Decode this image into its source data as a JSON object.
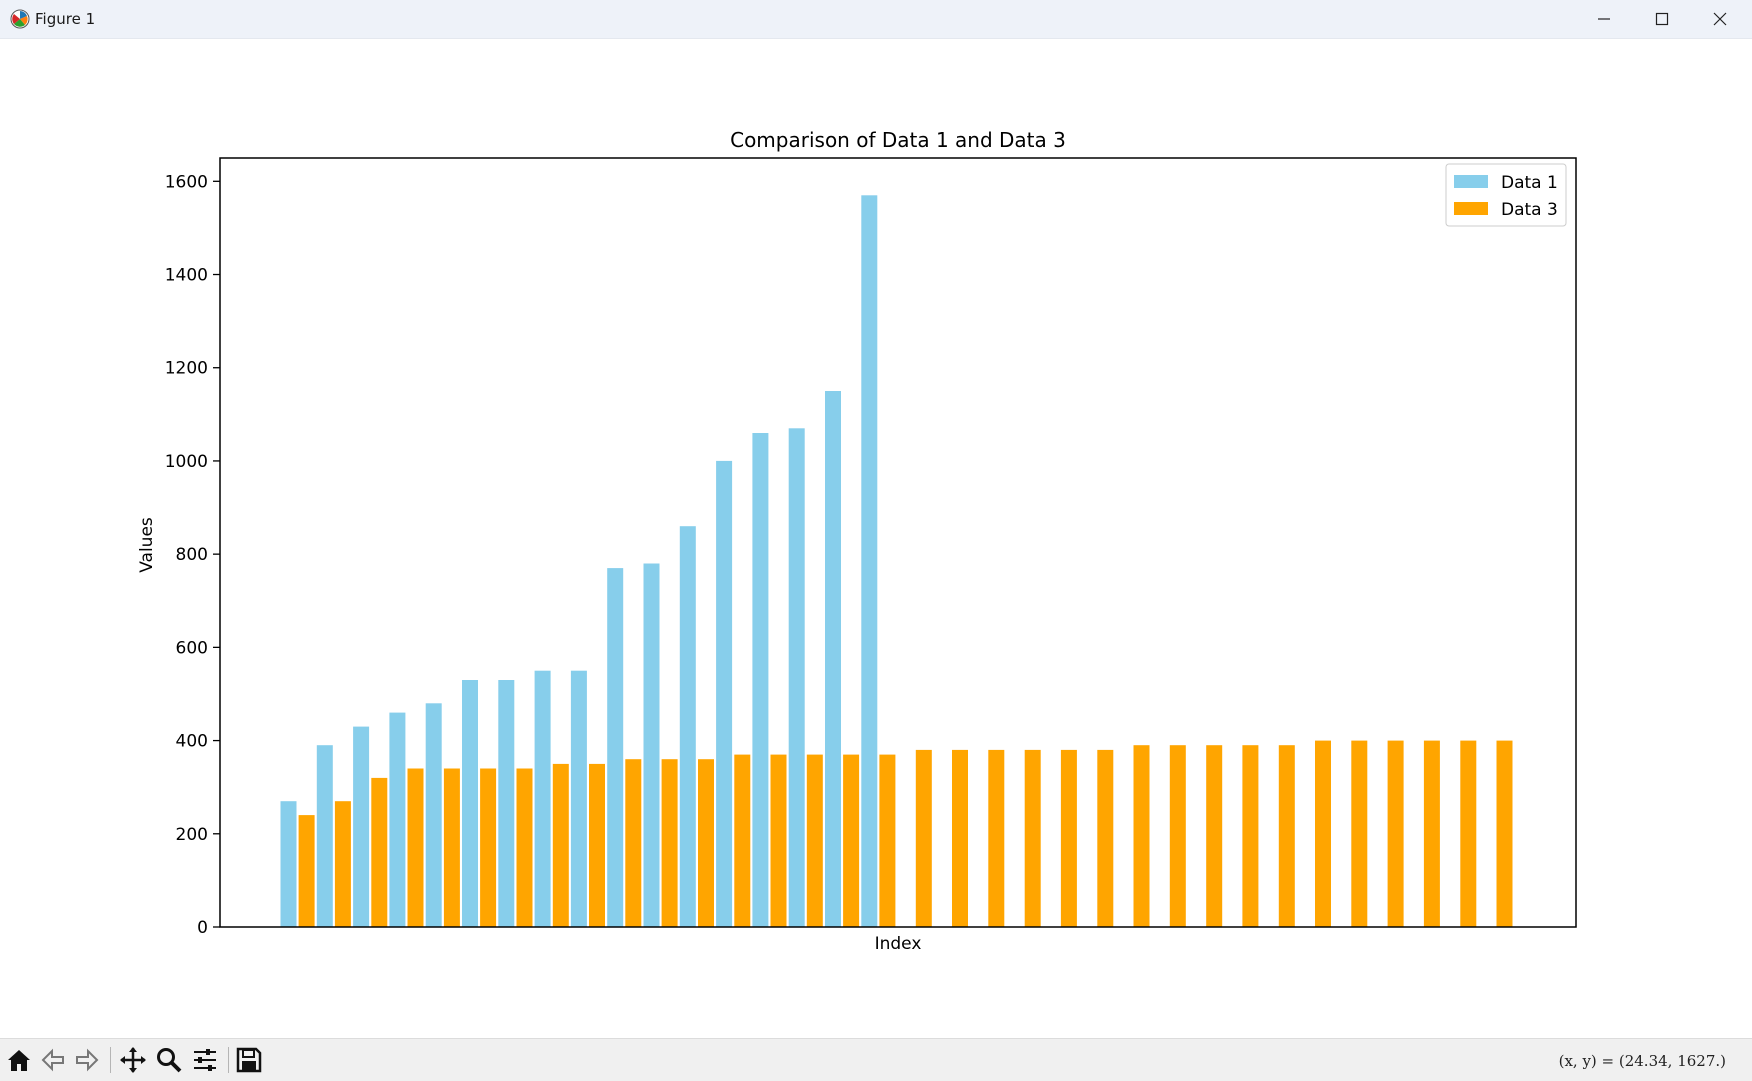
{
  "window": {
    "title": "Figure 1",
    "icon": "matplotlib-icon",
    "controls": [
      "minimize-icon",
      "maximize-icon",
      "close-icon"
    ]
  },
  "toolbar": {
    "buttons": [
      "home-icon",
      "back-arrow-icon",
      "forward-arrow-icon",
      "pan-move-icon",
      "zoom-magnifier-icon",
      "configure-subplots-icon",
      "save-icon"
    ],
    "coordinates": "(x, y) = (24.34, 1627.)"
  },
  "chart_data": {
    "type": "bar",
    "title": "Comparison of Data 1 and Data 3",
    "xlabel": "Index",
    "ylabel": "Values",
    "ylim": [
      0,
      1650
    ],
    "yticks": [
      0,
      200,
      400,
      600,
      800,
      1000,
      1200,
      1400,
      1600
    ],
    "x_tick_labels_visible": false,
    "grid": false,
    "legend_position": "top-right",
    "series": [
      {
        "name": "Data 1",
        "color": "#87ceeb",
        "x_start": 0,
        "values": [
          270,
          390,
          430,
          460,
          480,
          530,
          530,
          550,
          550,
          770,
          780,
          860,
          1000,
          1060,
          1070,
          1150,
          1570
        ]
      },
      {
        "name": "Data 3",
        "color": "#ffa500",
        "x_start": 0.5,
        "values": [
          240,
          270,
          320,
          340,
          340,
          340,
          340,
          350,
          350,
          360,
          360,
          360,
          370,
          370,
          370,
          370,
          370,
          380,
          380,
          380,
          380,
          380,
          380,
          390,
          390,
          390,
          390,
          390,
          400,
          400,
          400,
          400,
          400,
          400
        ]
      }
    ]
  }
}
